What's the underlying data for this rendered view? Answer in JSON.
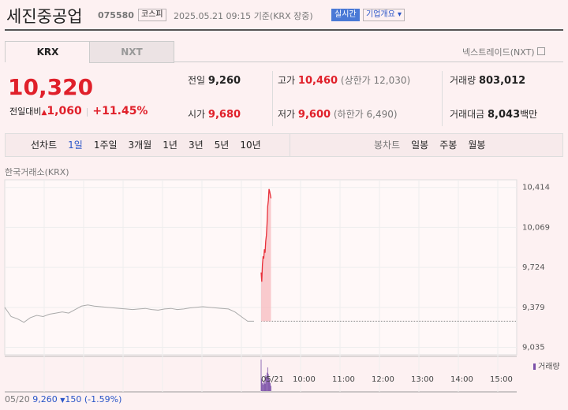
{
  "header": {
    "name": "세진중공업",
    "code": "075580",
    "market": "코스피",
    "timestamp": "2025.05.21 09:15",
    "basis": "기준(KRX 장중)",
    "realtime": "실시간",
    "overview": "기업개요"
  },
  "tabs": [
    "KRX",
    "NXT"
  ],
  "nxt_link": "넥스트레이드(NXT)",
  "price": {
    "current": "10,320",
    "change_label": "전일대비",
    "change": "1,060",
    "change_rate": "+11.45%"
  },
  "stats": [
    {
      "label": "전일",
      "value": "9,260"
    },
    {
      "label": "고가",
      "value": "10,460",
      "note": "(상한가 12,030)"
    },
    {
      "label": "거래량",
      "value": "803,012"
    },
    {
      "label": "시가",
      "value": "9,680"
    },
    {
      "label": "저가",
      "value": "9,600",
      "note": "(하한가 6,490)"
    },
    {
      "label": "거래대금",
      "value": "8,043",
      "unit": "백만"
    }
  ],
  "period_bar": {
    "line_label": "선차트",
    "line_periods": [
      "1일",
      "1주일",
      "3개월",
      "1년",
      "3년",
      "5년",
      "10년"
    ],
    "candle_label": "봉차트",
    "candle_periods": [
      "일봉",
      "주봉",
      "월봉"
    ]
  },
  "chart": {
    "source": "한국거래소(KRX)",
    "ylim": [
      8970,
      10480
    ],
    "yticks": [
      {
        "value": 10414,
        "label": "10,414"
      },
      {
        "value": 10069,
        "label": "10,069"
      },
      {
        "value": 9724,
        "label": "9,724"
      },
      {
        "value": 9379,
        "label": "9,379"
      },
      {
        "value": 9035,
        "label": "9,035"
      }
    ],
    "prev_close": 9260,
    "prev_day_values": [
      9380,
      9300,
      9280,
      9250,
      9290,
      9310,
      9300,
      9320,
      9330,
      9340,
      9330,
      9360,
      9390,
      9400,
      9390,
      9385,
      9380,
      9375,
      9370,
      9365,
      9360,
      9365,
      9370,
      9360,
      9355,
      9365,
      9370,
      9360,
      9365,
      9375,
      9380,
      9385,
      9380,
      9375,
      9370,
      9365,
      9340,
      9300,
      9260,
      9260
    ],
    "today_values": [
      9680,
      9600,
      9750,
      9820,
      9800,
      9880,
      9850,
      9950,
      10000,
      10100,
      10250,
      10300,
      10400,
      10380,
      10350,
      10320
    ],
    "volume_label": "거래량",
    "volumes": [
      120000,
      45000,
      30000,
      25000,
      40000,
      35000,
      28000,
      60000,
      55000,
      70000,
      90000,
      65000,
      50000,
      40000,
      30000,
      20000
    ],
    "x_labels": [
      "05/21",
      "10:00",
      "11:00",
      "12:00",
      "13:00",
      "14:00",
      "15:00"
    ],
    "footer": {
      "date": "05/20",
      "close": "9,260",
      "change": "150",
      "rate": "(-1.59%)"
    }
  }
}
